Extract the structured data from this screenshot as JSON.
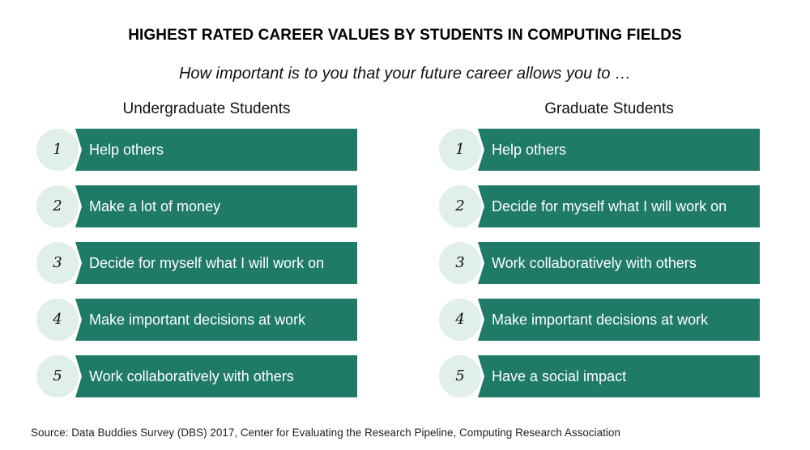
{
  "title": "HIGHEST RATED CAREER VALUES BY STUDENTS IN COMPUTING FIELDS",
  "subtitle": "How important is to you that your future career allows you to …",
  "columns": [
    {
      "header": "Undergraduate Students",
      "items": [
        {
          "rank": "1",
          "label": "Help others"
        },
        {
          "rank": "2",
          "label": "Make a lot of money"
        },
        {
          "rank": "3",
          "label": "Decide for myself what I will work on"
        },
        {
          "rank": "4",
          "label": "Make important decisions at work"
        },
        {
          "rank": "5",
          "label": "Work collaboratively with others"
        }
      ]
    },
    {
      "header": "Graduate Students",
      "items": [
        {
          "rank": "1",
          "label": "Help others"
        },
        {
          "rank": "2",
          "label": "Decide for myself what I will work on"
        },
        {
          "rank": "3",
          "label": "Work collaboratively with others"
        },
        {
          "rank": "4",
          "label": "Make important decisions at work"
        },
        {
          "rank": "5",
          "label": "Have a social impact"
        }
      ]
    }
  ],
  "source": "Source: Data Buddies Survey (DBS) 2017, Center for Evaluating the Research Pipeline, Computing Research Association",
  "colors": {
    "bar": "#1f7a67",
    "badge": "#e0eeec",
    "bar_text": "#ffffff"
  }
}
